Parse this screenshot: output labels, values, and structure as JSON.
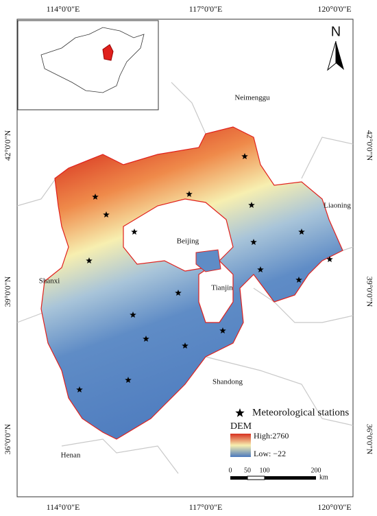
{
  "graticule": {
    "top": [
      "114°0'0\"E",
      "117°0'0\"E",
      "120°0'0\"E"
    ],
    "bottom": [
      "114°0'0\"E",
      "117°0'0\"E",
      "120°0'0\"E"
    ],
    "left": [
      "42°0'0\"N",
      "39°0'0\"N",
      "36°0'0\"N"
    ],
    "right": [
      "42°0'0\"N",
      "39°0'0\"N",
      "36°0'0\"N"
    ]
  },
  "north_arrow": {
    "label": "N"
  },
  "regions": [
    "Neimenggu",
    "Liaoning",
    "Beijing",
    "Tianjin",
    "Shanxi",
    "Shandong",
    "Henan"
  ],
  "legend": {
    "stations": "Meteorological stations",
    "dem_title": "DEM",
    "high": "High:2760",
    "low": "Low: −22"
  },
  "scale_bar": {
    "ticks": [
      "0",
      "50",
      "100",
      "200"
    ],
    "unit": "km"
  }
}
